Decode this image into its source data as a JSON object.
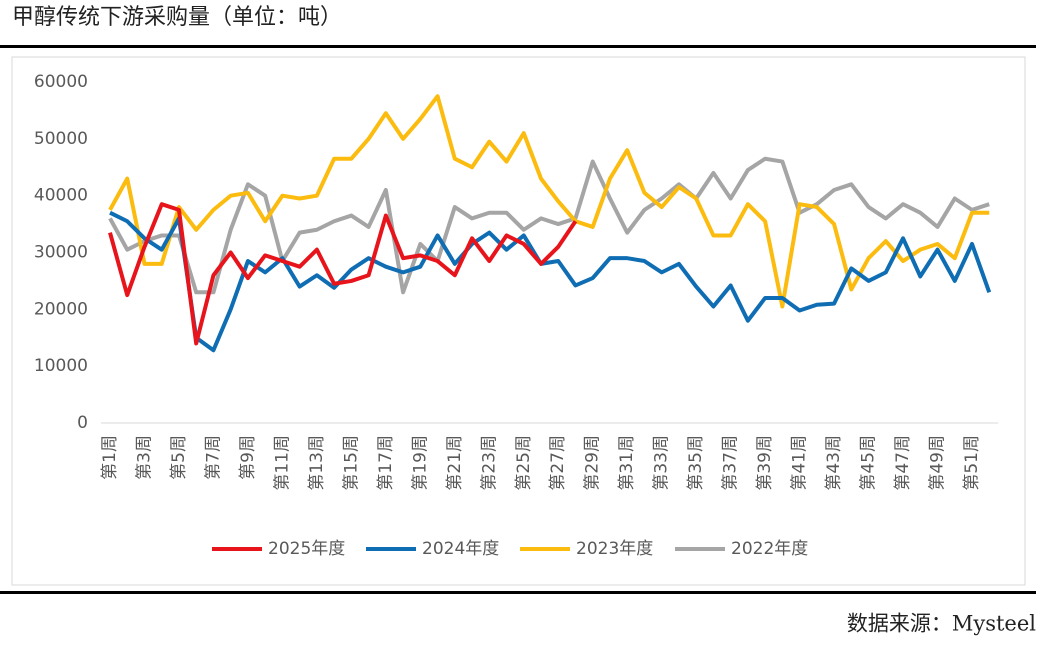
{
  "chart_data": {
    "type": "line",
    "title": "甲醇传统下游采购量（单位：吨）",
    "source": "数据来源：Mysteel",
    "categories": [
      "第1周",
      null,
      "第3周",
      null,
      "第5周",
      null,
      "第7周",
      null,
      "第9周",
      null,
      "第11周",
      null,
      "第13周",
      null,
      "第15周",
      null,
      "第17周",
      null,
      "第19周",
      null,
      "第21周",
      null,
      "第23周",
      null,
      "第25周",
      null,
      "第27周",
      null,
      "第29周",
      null,
      "第31周",
      null,
      "第33周",
      null,
      "第35周",
      null,
      "第37周",
      null,
      "第39周",
      null,
      "第41周",
      null,
      "第43周",
      null,
      "第45周",
      null,
      "第47周",
      null,
      "第49周",
      null,
      "第51周",
      null
    ],
    "series": [
      {
        "name": "2025年度",
        "color": "#e8141b",
        "values": [
          33500,
          22500,
          31000,
          38500,
          37500,
          14000,
          26000,
          30000,
          25500,
          29500,
          28500,
          27500,
          30500,
          24500,
          25000,
          26000,
          36500,
          29000,
          29500,
          28500,
          26000,
          32500,
          28500,
          33000,
          31500,
          28000,
          31000,
          35500,
          null,
          null,
          null,
          null,
          null,
          null,
          null,
          null,
          null,
          null,
          null,
          null,
          null,
          null,
          null,
          null,
          null,
          null,
          null,
          null,
          null,
          null,
          null,
          null
        ]
      },
      {
        "name": "2024年度",
        "color": "#0f6db3",
        "values": [
          37000,
          35500,
          32500,
          30500,
          36000,
          15000,
          12800,
          20000,
          28500,
          26500,
          29000,
          24000,
          26000,
          23800,
          27000,
          29000,
          27500,
          26500,
          27500,
          33000,
          28000,
          31500,
          33500,
          30500,
          33000,
          28000,
          28500,
          24200,
          25500,
          29000,
          29000,
          28500,
          26500,
          28000,
          24000,
          20500,
          24200,
          18000,
          22000,
          22000,
          19800,
          20800,
          21000,
          27200,
          25000,
          26500,
          32500,
          25800,
          30500,
          25000,
          31500,
          23000
        ]
      },
      {
        "name": "2023年度",
        "color": "#fbbc0f",
        "values": [
          37500,
          43000,
          28000,
          28000,
          38000,
          34000,
          37500,
          40000,
          40500,
          35500,
          40000,
          39500,
          40000,
          46500,
          46500,
          50000,
          54500,
          50000,
          53500,
          57500,
          46500,
          45000,
          49500,
          46000,
          51000,
          43000,
          39000,
          35500,
          34500,
          43000,
          48000,
          40500,
          38000,
          41500,
          39500,
          33000,
          33000,
          38500,
          35500,
          20500,
          38500,
          38000,
          35000,
          23500,
          29000,
          32000,
          28500,
          30500,
          31500,
          29000,
          37000,
          37000
        ]
      },
      {
        "name": "2022年度",
        "color": "#a5a5a5",
        "values": [
          36000,
          30500,
          32000,
          33000,
          33000,
          23000,
          23000,
          34000,
          42000,
          40000,
          28500,
          33500,
          34000,
          35500,
          36500,
          34500,
          41000,
          23000,
          31500,
          28500,
          38000,
          36000,
          37000,
          37000,
          34000,
          36000,
          35000,
          36000,
          46000,
          39500,
          33500,
          37500,
          39500,
          42000,
          39500,
          44000,
          39500,
          44500,
          46500,
          46000,
          37000,
          38500,
          41000,
          42000,
          38000,
          36000,
          38500,
          37000,
          34500,
          39500,
          37500,
          38500
        ]
      }
    ],
    "ylim": [
      0,
      60000
    ],
    "yticks": [
      0,
      10000,
      20000,
      30000,
      40000,
      50000,
      60000
    ],
    "grid": false,
    "legend": "bottom"
  }
}
